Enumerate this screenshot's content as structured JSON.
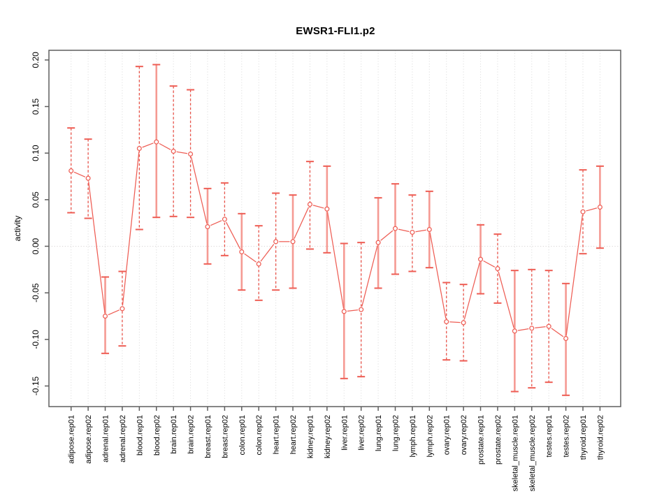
{
  "chart_data": {
    "type": "line",
    "title": "EWSR1-FLI1.p2",
    "xlabel": "",
    "ylabel": "activity",
    "legend": "none",
    "grid": "dotted vertical gridline at every category; dotted horizontal line at y=0",
    "marker": "open-circle",
    "error_bars": true,
    "ylim": [
      -0.17,
      0.21
    ],
    "yticks": [
      0.2,
      0.15,
      0.1,
      0.05,
      0.0,
      -0.05,
      -0.1,
      -0.15
    ],
    "ytick_labels": [
      "0.20",
      "0.15",
      "0.10",
      "0.05",
      "0.00",
      "-0.05",
      "-0.10",
      "-0.15"
    ],
    "x_tick_label_rotation_deg": 90,
    "y_tick_label_rotation_deg": 90,
    "categories": [
      "adipose.rep01",
      "adipose.rep02",
      "adrenal.rep01",
      "adrenal.rep02",
      "blood.rep01",
      "blood.rep02",
      "brain.rep01",
      "brain.rep02",
      "breast.rep01",
      "breast.rep02",
      "colon.rep01",
      "colon.rep02",
      "heart.rep01",
      "heart.rep02",
      "kidney.rep01",
      "kidney.rep02",
      "liver.rep01",
      "liver.rep02",
      "lung.rep01",
      "lung.rep02",
      "lymph.rep01",
      "lymph.rep02",
      "ovary.rep01",
      "ovary.rep02",
      "prostate.rep01",
      "prostate.rep02",
      "skeletal_muscle.rep01",
      "skeletal_muscle.rep02",
      "testes.rep01",
      "testes.rep02",
      "thyroid.rep01",
      "thyroid.rep02"
    ],
    "series": [
      {
        "name": "EWSR1-FLI1.p2",
        "values": [
          0.081,
          0.073,
          -0.075,
          -0.067,
          0.105,
          0.112,
          0.102,
          0.099,
          0.021,
          0.029,
          -0.006,
          -0.019,
          0.005,
          0.005,
          0.045,
          0.04,
          -0.07,
          -0.068,
          0.004,
          0.019,
          0.015,
          0.018,
          -0.081,
          -0.082,
          -0.014,
          -0.024,
          -0.091,
          -0.088,
          -0.086,
          -0.099,
          0.037,
          0.042
        ],
        "ci_low": [
          0.036,
          0.03,
          -0.115,
          -0.107,
          0.018,
          0.031,
          0.032,
          0.031,
          -0.019,
          -0.01,
          -0.047,
          -0.058,
          -0.047,
          -0.045,
          -0.003,
          -0.007,
          -0.142,
          -0.14,
          -0.045,
          -0.03,
          -0.027,
          -0.023,
          -0.122,
          -0.123,
          -0.051,
          -0.061,
          -0.156,
          -0.152,
          -0.146,
          -0.16,
          -0.008,
          -0.002
        ],
        "ci_high": [
          0.127,
          0.115,
          -0.033,
          -0.027,
          0.193,
          0.195,
          0.172,
          0.168,
          0.062,
          0.068,
          0.035,
          0.022,
          0.057,
          0.055,
          0.091,
          0.086,
          0.003,
          0.004,
          0.052,
          0.067,
          0.055,
          0.059,
          -0.039,
          -0.041,
          0.023,
          0.013,
          -0.026,
          -0.025,
          -0.026,
          -0.04,
          0.082,
          0.086
        ],
        "stem_styles": [
          "dashed",
          "dashed",
          "solid",
          "dashed",
          "dashed",
          "solid",
          "dashed",
          "dashed",
          "solid",
          "dashed",
          "solid",
          "dashed",
          "dashed",
          "solid",
          "dashed",
          "solid",
          "solid",
          "dashed",
          "solid",
          "solid",
          "dashed",
          "solid",
          "dashed",
          "dashed",
          "solid",
          "dashed",
          "solid",
          "dashed",
          "dashed",
          "solid",
          "dashed",
          "solid"
        ]
      }
    ],
    "colors": {
      "series_line": "#ee5d54",
      "stem_solid": "#f59a93",
      "stem_dashed": "#e8544b",
      "marker_fill": "#ffffff",
      "gridline": "#dedede",
      "zero_line": "#d8d4d4",
      "axis_frame": "#5e5e5e",
      "tick_text": "#000000"
    }
  }
}
